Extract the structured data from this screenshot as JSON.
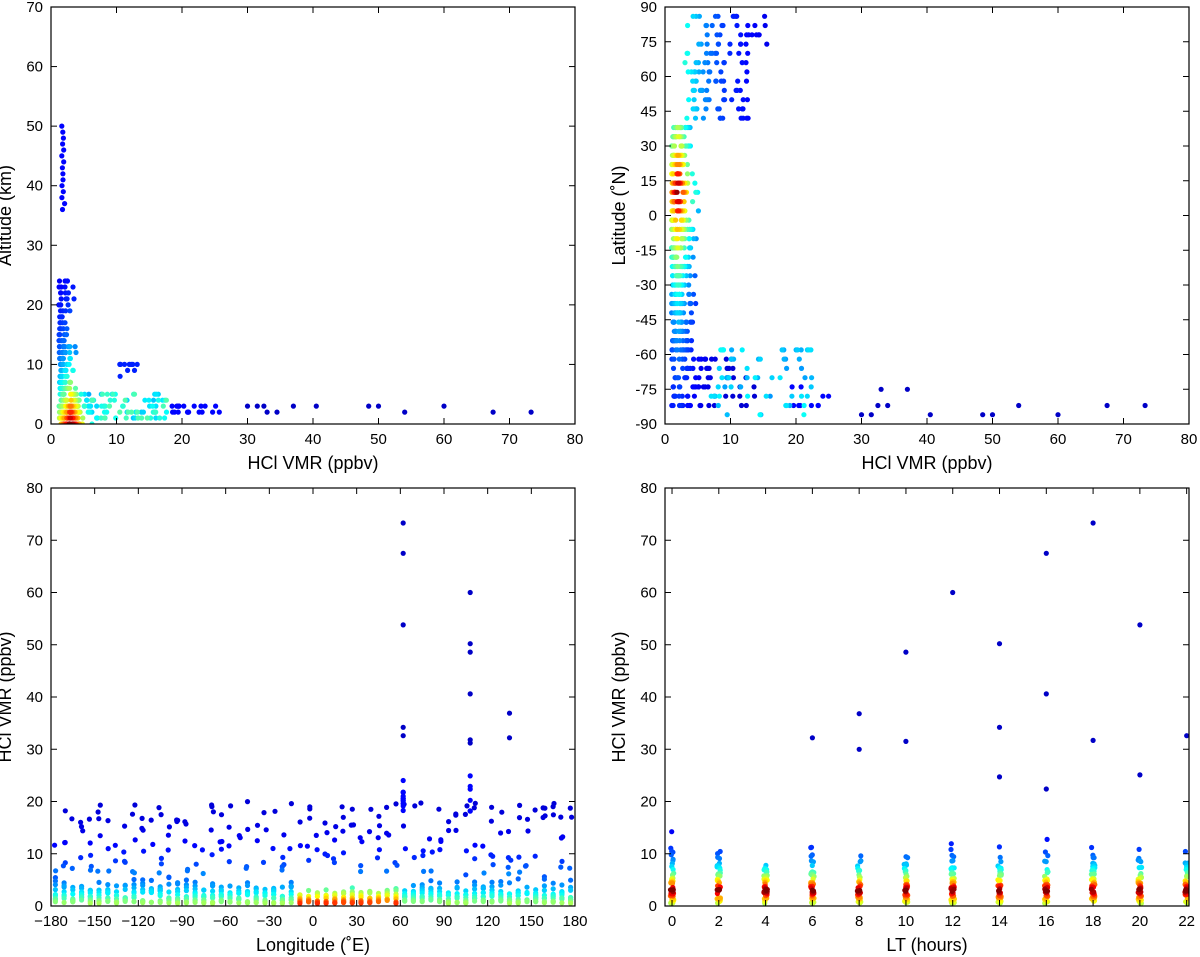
{
  "chart_data": [
    {
      "type": "scatter",
      "name": "altitude-vs-vmr",
      "xlabel": "HCl VMR (ppbv)",
      "ylabel": "Altitude (km)",
      "xlim": [
        0,
        80
      ],
      "ylim": [
        0,
        70
      ],
      "xticks": [
        0,
        10,
        20,
        30,
        40,
        50,
        60,
        70,
        80
      ],
      "yticks": [
        0,
        10,
        20,
        30,
        40,
        50,
        60,
        70
      ],
      "xtick_labels": [
        "0",
        "10",
        "20",
        "30",
        "40",
        "50",
        "60",
        "70",
        "80"
      ],
      "ytick_labels": [
        "0",
        "10",
        "20",
        "30",
        "40",
        "50",
        "60",
        "70"
      ],
      "colormap": "jet (dark red = high point density, dark blue = low)",
      "outliers": [
        [
          30,
          3
        ],
        [
          31.5,
          3
        ],
        [
          32.5,
          3
        ],
        [
          33,
          2
        ],
        [
          34.5,
          2
        ],
        [
          37,
          3
        ],
        [
          40.5,
          3
        ],
        [
          48.5,
          3
        ],
        [
          50,
          3
        ],
        [
          54,
          2
        ],
        [
          60,
          3
        ],
        [
          67.5,
          2
        ],
        [
          73.3,
          2
        ]
      ]
    },
    {
      "type": "scatter",
      "name": "latitude-vs-vmr",
      "xlabel": "HCl VMR (ppbv)",
      "ylabel": "Latitude (˚N)",
      "xlim": [
        0,
        80
      ],
      "ylim": [
        -90,
        90
      ],
      "xticks": [
        0,
        10,
        20,
        30,
        40,
        50,
        60,
        70,
        80
      ],
      "yticks": [
        -90,
        -75,
        -60,
        -45,
        -30,
        -15,
        0,
        15,
        30,
        45,
        60,
        75,
        90
      ],
      "xtick_labels": [
        "0",
        "10",
        "20",
        "30",
        "40",
        "50",
        "60",
        "70",
        "80"
      ],
      "ytick_labels": [
        "-90",
        "-75",
        "-60",
        "-45",
        "-30",
        "-15",
        "0",
        "15",
        "30",
        "45",
        "60",
        "75",
        "90"
      ],
      "colormap": "jet (dark red = high point density, dark blue = low)",
      "outliers": [
        [
          30,
          -86
        ],
        [
          31.5,
          -86
        ],
        [
          32.5,
          -82
        ],
        [
          33,
          -75
        ],
        [
          34,
          -82
        ],
        [
          37,
          -75
        ],
        [
          40.5,
          -86
        ],
        [
          48.5,
          -86
        ],
        [
          50,
          -86
        ],
        [
          54,
          -82
        ],
        [
          60,
          -86
        ],
        [
          67.5,
          -82
        ],
        [
          73.3,
          -82
        ]
      ]
    },
    {
      "type": "scatter",
      "name": "vmr-vs-longitude",
      "xlabel": "Longitude (˚E)",
      "ylabel": "HCl VMR (ppbv)",
      "xlim": [
        -180,
        180
      ],
      "ylim": [
        0,
        80
      ],
      "xticks": [
        -180,
        -150,
        -120,
        -90,
        -60,
        -30,
        0,
        30,
        60,
        90,
        120,
        150,
        180
      ],
      "yticks": [
        0,
        10,
        20,
        30,
        40,
        50,
        60,
        70,
        80
      ],
      "xtick_labels": [
        "−180",
        "−150",
        "−120",
        "−90",
        "−60",
        "−30",
        "0",
        "30",
        "60",
        "90",
        "120",
        "150",
        "180"
      ],
      "ytick_labels": [
        "0",
        "10",
        "20",
        "30",
        "40",
        "50",
        "60",
        "70",
        "80"
      ],
      "colormap": "jet (dark red = high point density, dark blue = low)",
      "outliers": [
        [
          62,
          73.3
        ],
        [
          62,
          67.5
        ],
        [
          62,
          53.8
        ],
        [
          62,
          34.2
        ],
        [
          62,
          32.6
        ],
        [
          108,
          60
        ],
        [
          108,
          50.2
        ],
        [
          108,
          48.6
        ],
        [
          108,
          40.6
        ],
        [
          108,
          31.8
        ],
        [
          108,
          31.2
        ],
        [
          135,
          36.9
        ],
        [
          135,
          32.2
        ]
      ]
    },
    {
      "type": "scatter",
      "name": "vmr-vs-local-time",
      "xlabel": "LT (hours)",
      "ylabel": "HCl VMR (ppbv)",
      "xlim": [
        -0.3,
        22.1
      ],
      "ylim": [
        0,
        80
      ],
      "xticks": [
        0,
        2,
        4,
        6,
        8,
        10,
        12,
        14,
        16,
        18,
        20,
        22
      ],
      "yticks": [
        0,
        10,
        20,
        30,
        40,
        50,
        60,
        70,
        80
      ],
      "xtick_labels": [
        "0",
        "2",
        "4",
        "6",
        "8",
        "10",
        "12",
        "14",
        "16",
        "18",
        "20",
        "22"
      ],
      "ytick_labels": [
        "0",
        "10",
        "20",
        "30",
        "40",
        "50",
        "60",
        "70",
        "80"
      ],
      "colormap": "jet (dark red = high point density, dark blue = low)",
      "outliers": [
        [
          6,
          32.2
        ],
        [
          8,
          36.8
        ],
        [
          8,
          30
        ],
        [
          10,
          48.6
        ],
        [
          10,
          31.5
        ],
        [
          12,
          60
        ],
        [
          14,
          50.2
        ],
        [
          14,
          34.2
        ],
        [
          14,
          24.7
        ],
        [
          16,
          67.5
        ],
        [
          16,
          40.6
        ],
        [
          16,
          22.4
        ],
        [
          18,
          73.3
        ],
        [
          18,
          31.7
        ],
        [
          20,
          53.8
        ],
        [
          20,
          25.1
        ],
        [
          22,
          32.6
        ]
      ]
    }
  ]
}
